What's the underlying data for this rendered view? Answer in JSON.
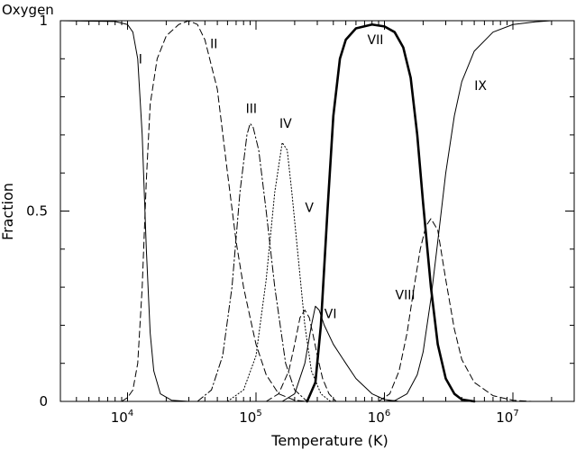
{
  "chart_data": {
    "type": "line",
    "title": "Oxygen",
    "xlabel": "Temperature (K)",
    "ylabel": "Fraction",
    "xscale": "log",
    "xlim": [
      3000,
      30000000
    ],
    "ylim": [
      0,
      1
    ],
    "x_ticks": [
      {
        "base": "10",
        "exp": "4",
        "value": 10000
      },
      {
        "base": "10",
        "exp": "5",
        "value": 100000
      },
      {
        "base": "10",
        "exp": "6",
        "value": 1000000
      },
      {
        "base": "10",
        "exp": "7",
        "value": 10000000
      }
    ],
    "y_ticks": [
      {
        "label": "0",
        "value": 0
      },
      {
        "label": "0.5",
        "value": 0.5
      },
      {
        "label": "1",
        "value": 1
      }
    ],
    "grid": false,
    "series": [
      {
        "name": "I",
        "style": "solid",
        "weight": "thin",
        "label_at": [
          12600,
          0.9
        ],
        "points": [
          [
            3000,
            1
          ],
          [
            8000,
            0.998
          ],
          [
            10000,
            0.99
          ],
          [
            11000,
            0.97
          ],
          [
            12000,
            0.9
          ],
          [
            13000,
            0.7
          ],
          [
            14000,
            0.4
          ],
          [
            15000,
            0.18
          ],
          [
            16000,
            0.08
          ],
          [
            18000,
            0.02
          ],
          [
            22000,
            0.003
          ],
          [
            30000,
            0
          ]
        ]
      },
      {
        "name": "II",
        "style": "dashed",
        "weight": "thin",
        "label_at": [
          47000,
          0.94
        ],
        "points": [
          [
            9000,
            0
          ],
          [
            10000,
            0.01
          ],
          [
            11000,
            0.03
          ],
          [
            12000,
            0.1
          ],
          [
            13000,
            0.3
          ],
          [
            14000,
            0.58
          ],
          [
            15000,
            0.78
          ],
          [
            17000,
            0.9
          ],
          [
            20000,
            0.96
          ],
          [
            25000,
            0.99
          ],
          [
            30000,
            1
          ],
          [
            35000,
            0.99
          ],
          [
            40000,
            0.95
          ],
          [
            50000,
            0.82
          ],
          [
            60000,
            0.6
          ],
          [
            70000,
            0.42
          ],
          [
            80000,
            0.3
          ],
          [
            90000,
            0.22
          ],
          [
            100000,
            0.15
          ],
          [
            120000,
            0.07
          ],
          [
            150000,
            0.02
          ],
          [
            200000,
            0.003
          ],
          [
            250000,
            0
          ]
        ]
      },
      {
        "name": "III",
        "style": "dashdot",
        "weight": "thin",
        "label_at": [
          92000,
          0.77
        ],
        "points": [
          [
            35000,
            0
          ],
          [
            45000,
            0.03
          ],
          [
            55000,
            0.12
          ],
          [
            65000,
            0.3
          ],
          [
            75000,
            0.55
          ],
          [
            85000,
            0.7
          ],
          [
            90000,
            0.73
          ],
          [
            95000,
            0.72
          ],
          [
            105000,
            0.66
          ],
          [
            120000,
            0.5
          ],
          [
            140000,
            0.3
          ],
          [
            170000,
            0.1
          ],
          [
            200000,
            0.03
          ],
          [
            250000,
            0
          ]
        ]
      },
      {
        "name": "IV",
        "style": "dotted",
        "weight": "thin",
        "label_at": [
          170000,
          0.73
        ],
        "points": [
          [
            60000,
            0
          ],
          [
            80000,
            0.03
          ],
          [
            100000,
            0.12
          ],
          [
            120000,
            0.32
          ],
          [
            140000,
            0.55
          ],
          [
            160000,
            0.68
          ],
          [
            175000,
            0.66
          ],
          [
            190000,
            0.55
          ],
          [
            210000,
            0.4
          ],
          [
            240000,
            0.2
          ],
          [
            270000,
            0.08
          ],
          [
            320000,
            0.02
          ],
          [
            380000,
            0
          ]
        ]
      },
      {
        "name": "V",
        "style": "dashed",
        "weight": "thin",
        "label_at": [
          260000,
          0.51
        ],
        "points": [
          [
            120000,
            0
          ],
          [
            150000,
            0.02
          ],
          [
            180000,
            0.08
          ],
          [
            200000,
            0.15
          ],
          [
            220000,
            0.22
          ],
          [
            240000,
            0.24
          ],
          [
            260000,
            0.22
          ],
          [
            280000,
            0.17
          ],
          [
            300000,
            0.12
          ],
          [
            330000,
            0.06
          ],
          [
            370000,
            0.02
          ],
          [
            420000,
            0
          ]
        ]
      },
      {
        "name": "VI",
        "style": "solid",
        "weight": "thin",
        "label_at": [
          380000,
          0.23
        ],
        "points": [
          [
            160000,
            0
          ],
          [
            200000,
            0.02
          ],
          [
            240000,
            0.1
          ],
          [
            270000,
            0.2
          ],
          [
            290000,
            0.25
          ],
          [
            310000,
            0.24
          ],
          [
            340000,
            0.2
          ],
          [
            400000,
            0.15
          ],
          [
            500000,
            0.1
          ],
          [
            600000,
            0.06
          ],
          [
            800000,
            0.02
          ],
          [
            1000000,
            0.005
          ],
          [
            1300000,
            0
          ]
        ]
      },
      {
        "name": "VII",
        "style": "solid",
        "weight": "thick",
        "label_at": [
          850000,
          0.95
        ],
        "points": [
          [
            250000,
            0
          ],
          [
            290000,
            0.05
          ],
          [
            320000,
            0.2
          ],
          [
            360000,
            0.5
          ],
          [
            400000,
            0.75
          ],
          [
            450000,
            0.9
          ],
          [
            500000,
            0.95
          ],
          [
            600000,
            0.98
          ],
          [
            800000,
            0.99
          ],
          [
            1000000,
            0.985
          ],
          [
            1200000,
            0.97
          ],
          [
            1400000,
            0.93
          ],
          [
            1600000,
            0.85
          ],
          [
            1800000,
            0.7
          ],
          [
            2000000,
            0.52
          ],
          [
            2300000,
            0.3
          ],
          [
            2600000,
            0.15
          ],
          [
            3000000,
            0.06
          ],
          [
            3500000,
            0.02
          ],
          [
            4000000,
            0.005
          ],
          [
            5000000,
            0
          ]
        ]
      },
      {
        "name": "VIII",
        "style": "dashed",
        "weight": "thin",
        "label_at": [
          1450000,
          0.28
        ],
        "points": [
          [
            900000,
            0
          ],
          [
            1100000,
            0.02
          ],
          [
            1300000,
            0.08
          ],
          [
            1500000,
            0.18
          ],
          [
            1700000,
            0.3
          ],
          [
            1900000,
            0.4
          ],
          [
            2100000,
            0.46
          ],
          [
            2300000,
            0.48
          ],
          [
            2600000,
            0.45
          ],
          [
            3000000,
            0.32
          ],
          [
            3500000,
            0.19
          ],
          [
            4000000,
            0.11
          ],
          [
            5000000,
            0.05
          ],
          [
            7000000,
            0.015
          ],
          [
            10000000,
            0.003
          ],
          [
            14000000,
            0
          ]
        ]
      },
      {
        "name": "IX",
        "style": "solid",
        "weight": "thin",
        "label_at": [
          5600000,
          0.83
        ],
        "points": [
          [
            1000000,
            0
          ],
          [
            1200000,
            0.002
          ],
          [
            1500000,
            0.02
          ],
          [
            1800000,
            0.07
          ],
          [
            2000000,
            0.13
          ],
          [
            2300000,
            0.27
          ],
          [
            2600000,
            0.42
          ],
          [
            3000000,
            0.6
          ],
          [
            3500000,
            0.75
          ],
          [
            4000000,
            0.84
          ],
          [
            5000000,
            0.92
          ],
          [
            7000000,
            0.97
          ],
          [
            10000000,
            0.99
          ],
          [
            15000000,
            0.997
          ],
          [
            20000000,
            1
          ],
          [
            30000000,
            1
          ]
        ]
      }
    ]
  }
}
